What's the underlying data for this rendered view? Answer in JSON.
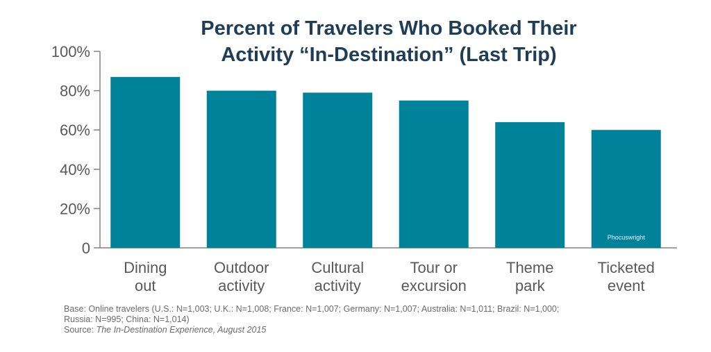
{
  "chart_data": {
    "type": "bar",
    "title_lines": [
      "Percent of Travelers Who Booked Their",
      "Activity “In-Destination” (Last Trip)"
    ],
    "categories": [
      [
        "Dining",
        "out"
      ],
      [
        "Outdoor",
        "activity"
      ],
      [
        "Cultural",
        "activity"
      ],
      [
        "Tour or",
        "excursion"
      ],
      [
        "Theme",
        "park"
      ],
      [
        "Ticketed",
        "event"
      ]
    ],
    "values": [
      87,
      80,
      79,
      75,
      64,
      60
    ],
    "ylim": [
      0,
      100
    ],
    "yticks": [
      0,
      20,
      40,
      60,
      80,
      100
    ],
    "ytick_labels": [
      "0",
      "20%",
      "40%",
      "60%",
      "80%",
      "100%"
    ],
    "bar_color": "#00829a",
    "axis_color": "#808080",
    "watermark": "Phocuswright"
  },
  "footnote": {
    "base_line1": "Base: Online travelers (U.S.: N=1,003;  U.K.: N=1,008; France: N=1,007; Germany: N=1,007; Australia: N=1,011; Brazil: N=1,000;",
    "base_line2": "Russia: N=995; China: N=1,014)",
    "source_label": "Source: ",
    "source_title": "The In-Destination Experience, August 2015"
  }
}
